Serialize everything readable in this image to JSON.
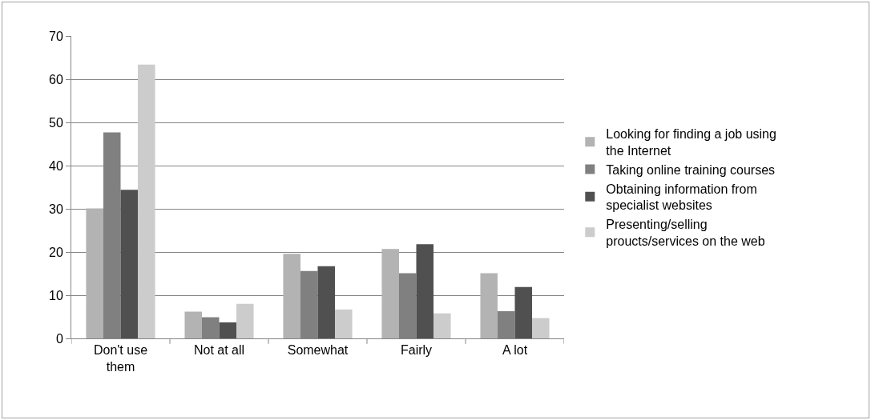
{
  "chart_data": {
    "type": "bar",
    "categories": [
      "Don't use them",
      "Not at all",
      "Somewhat",
      "Fairly",
      "A lot"
    ],
    "series": [
      {
        "name": "Looking for finding a job using the Internet",
        "color": "#b3b3b3",
        "values": [
          30.1,
          6.2,
          19.6,
          20.7,
          15.1
        ]
      },
      {
        "name": "Taking online training courses",
        "color": "#808080",
        "values": [
          47.7,
          4.9,
          15.6,
          15.1,
          6.3
        ]
      },
      {
        "name": "Obtaining information from specialist websites",
        "color": "#505050",
        "values": [
          34.4,
          3.7,
          16.7,
          21.8,
          11.9
        ]
      },
      {
        "name": "Presenting/selling proucts/services on the web",
        "color": "#cccccc",
        "values": [
          63.4,
          8.0,
          6.7,
          5.8,
          4.7
        ]
      }
    ],
    "ylim": [
      0,
      70
    ],
    "yticks": [
      0,
      10,
      20,
      30,
      40,
      50,
      60,
      70
    ],
    "grid": "y",
    "legend": "right"
  }
}
